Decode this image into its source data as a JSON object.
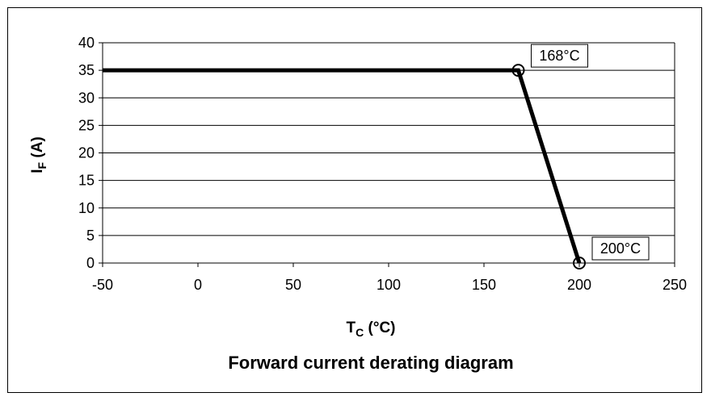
{
  "chart_data": {
    "type": "line",
    "title": "Forward current derating diagram",
    "xlabel": {
      "main": "T",
      "sub": "C",
      "rest": " (°C)"
    },
    "ylabel": {
      "main": "I",
      "sub": "F",
      "rest": " (A)"
    },
    "xlim": [
      -50,
      250
    ],
    "ylim": [
      0,
      40
    ],
    "xticks": [
      -50,
      0,
      50,
      100,
      150,
      200,
      250
    ],
    "yticks": [
      0,
      5,
      10,
      15,
      20,
      25,
      30,
      35,
      40
    ],
    "grid": "horizontal",
    "series": [
      {
        "points": [
          {
            "x": -50,
            "y": 35
          },
          {
            "x": 168,
            "y": 35
          },
          {
            "x": 200,
            "y": 0
          }
        ],
        "color": "#000000"
      }
    ],
    "annotations": [
      {
        "x": 168,
        "y": 35,
        "label": "168°C"
      },
      {
        "x": 200,
        "y": 0,
        "label": "200°C"
      }
    ]
  }
}
